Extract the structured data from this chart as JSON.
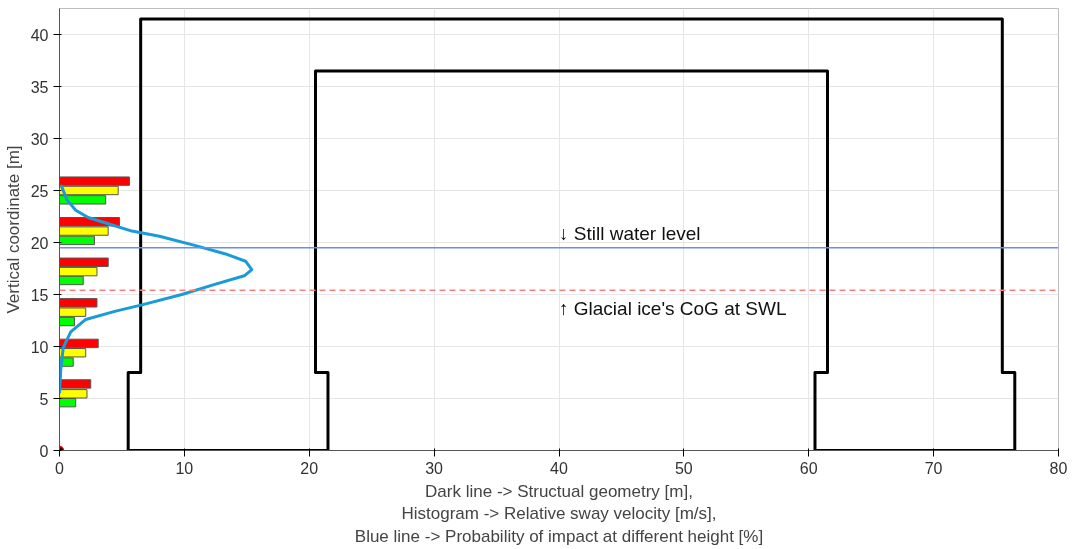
{
  "chart_data": {
    "type": "bar",
    "orientation": "horizontal",
    "xlabel": "Dark line -> Structual geometry [m],\nHistogram -> Relative sway velocity [m/s],\nBlue line -> Probability of impact at different height [%]",
    "ylabel": "Vertical coordinate [m]",
    "xlim": [
      0,
      80
    ],
    "ylim": [
      0,
      42.5
    ],
    "xticks": [
      0,
      10,
      20,
      30,
      40,
      50,
      60,
      70,
      80
    ],
    "yticks": [
      0,
      5,
      10,
      15,
      20,
      25,
      30,
      35,
      40
    ],
    "grid": true,
    "series": [
      {
        "color": "#00ff00",
        "x": [
          4.6,
          8.5,
          12.4,
          16.35,
          20.2,
          24.1
        ],
        "values": [
          1.3,
          1.1,
          1.2,
          1.9,
          2.8,
          3.7
        ]
      },
      {
        "color": "#ffff00",
        "x": [
          5.45,
          9.4,
          13.3,
          17.2,
          21.1,
          25.0
        ],
        "values": [
          2.2,
          2.1,
          2.1,
          3.0,
          3.9,
          4.7
        ]
      },
      {
        "color": "#ff0000",
        "x": [
          6.4,
          10.3,
          14.2,
          18.1,
          22.0,
          25.9
        ],
        "values": [
          2.5,
          3.1,
          3.0,
          3.9,
          4.8,
          5.6
        ]
      },
      {
        "type": "line",
        "color": "#000000",
        "values": [
          5.5,
          5.5,
          6.5,
          6.5,
          75.5,
          75.5,
          76.5,
          76.5,
          60.5
        ],
        "x": [
          0,
          7.5,
          7.5,
          41.5,
          41.5,
          7.5,
          7.5,
          0,
          0
        ]
      },
      {
        "type": "line",
        "color": "#000000",
        "values": [
          60.5,
          60.5,
          61.5,
          61.5,
          20.5,
          20.5,
          21.5,
          21.5,
          5.5
        ],
        "x": [
          0,
          7.5,
          7.5,
          36.5,
          36.5,
          7.5,
          7.5,
          0,
          0
        ]
      },
      {
        "type": "line",
        "color": "#1a9bd7",
        "values": [
          0,
          0.1,
          0.3,
          0.9,
          2.1,
          4.5,
          6.6,
          9.8,
          12.5,
          14.8,
          15.4,
          14.9,
          13.3,
          10.9,
          8.0,
          5.8,
          3.9,
          2.3,
          1.3,
          0.6,
          0.2,
          0.1
        ],
        "x": [
          5.5,
          7.8,
          9.9,
          11.4,
          12.6,
          13.4,
          14.0,
          15.0,
          16.0,
          16.8,
          17.4,
          18.2,
          18.9,
          19.7,
          20.6,
          21.1,
          21.8,
          22.4,
          23.1,
          24.1,
          25.3,
          25.5
        ]
      },
      {
        "type": "scatter",
        "color": "#000000",
        "marker": "circle",
        "x": [
          0
        ],
        "values": [
          0
        ]
      }
    ],
    "ref_lines": [
      {
        "axis": "y",
        "value": 19.5,
        "label": "↓ Still water level",
        "color": "#6a8cf5",
        "line_style": "solid"
      },
      {
        "axis": "y",
        "value": 15.4,
        "label": "↑ Glacial ice's CoG at SWL",
        "color": "#ff7f7f",
        "line_style": "dashed"
      }
    ]
  }
}
